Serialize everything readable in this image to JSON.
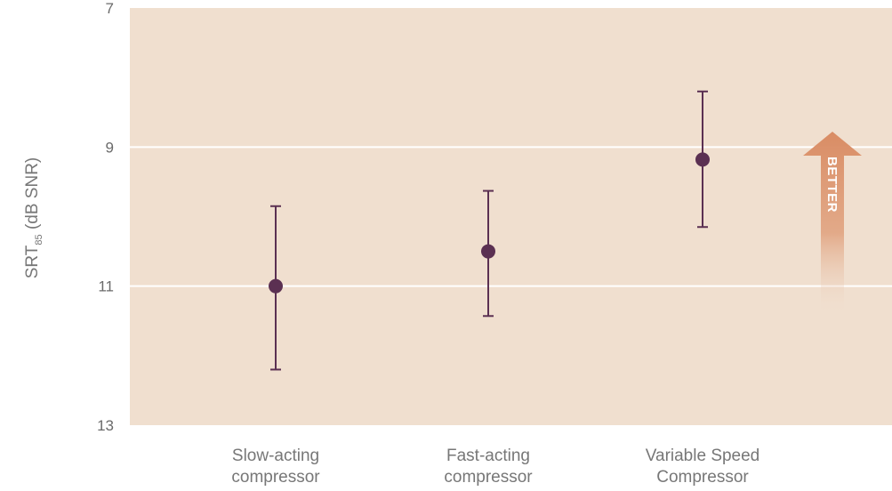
{
  "chart_data": {
    "type": "scatter",
    "categories": [
      "Slow-acting compressor",
      "Fast-acting compressor",
      "Variable Speed Compressor"
    ],
    "category_lines": [
      [
        "Slow-acting",
        "compressor"
      ],
      [
        "Fast-acting",
        "compressor"
      ],
      [
        "Variable Speed",
        "Compressor"
      ]
    ],
    "series": [
      {
        "values": [
          11.0,
          10.5,
          9.18
        ],
        "error_low": [
          9.85,
          9.63,
          8.2
        ],
        "error_high": [
          12.2,
          11.43,
          10.15
        ]
      }
    ],
    "ylim": [
      7,
      13
    ],
    "y_inverted": true,
    "y_ticks": [
      "7",
      "9",
      "11",
      "13"
    ],
    "y_tick_values": [
      7,
      9,
      11,
      13
    ],
    "ylabel": {
      "prefix": "SRT",
      "subscript": "85",
      "suffix": " (dB SNR)"
    },
    "annotation": "BETTER",
    "grid": true
  },
  "colors": {
    "plot_background": "#f0dfcf",
    "gridline": "#ffffff",
    "marker": "#5b3052",
    "arrow": "#d98c64",
    "tick_text": "#6a6a6a",
    "label_text": "#777777"
  }
}
